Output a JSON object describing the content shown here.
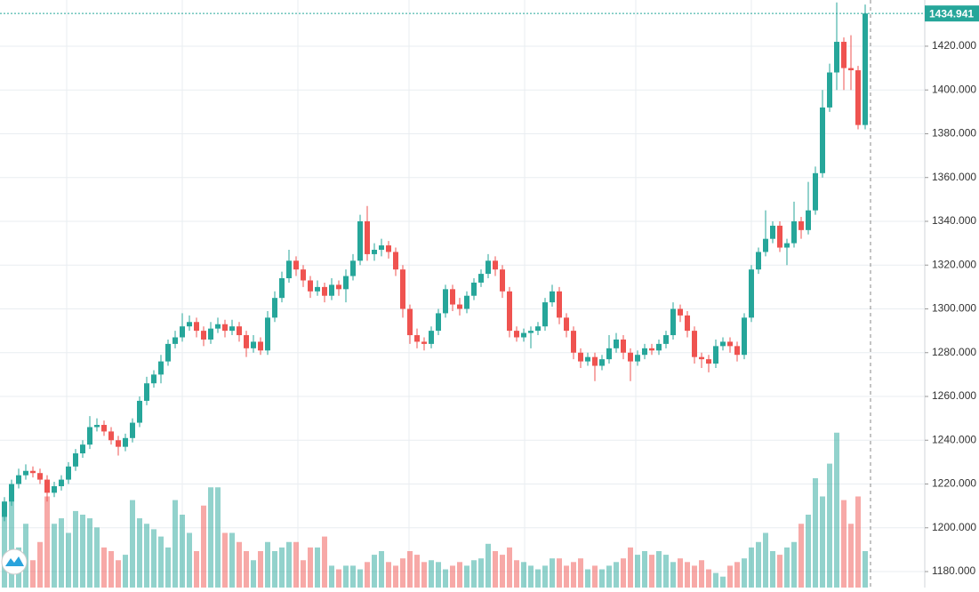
{
  "chart_data": {
    "type": "candlestick",
    "ylim": [
      1172.7,
      1441.1
    ],
    "yticks": [
      {
        "value": 1180,
        "label": "1180.000"
      },
      {
        "value": 1200,
        "label": "1200.000"
      },
      {
        "value": 1220,
        "label": "1220.000"
      },
      {
        "value": 1240,
        "label": "1240.000"
      },
      {
        "value": 1260,
        "label": "1260.000"
      },
      {
        "value": 1280,
        "label": "1280.000"
      },
      {
        "value": 1300,
        "label": "1300.000"
      },
      {
        "value": 1320,
        "label": "1320.000"
      },
      {
        "value": 1340,
        "label": "1340.000"
      },
      {
        "value": 1360,
        "label": "1360.000"
      },
      {
        "value": 1380,
        "label": "1380.000"
      },
      {
        "value": 1400,
        "label": "1400.000"
      },
      {
        "value": 1420,
        "label": "1420.000"
      }
    ],
    "grid": true,
    "up_color": "#26a69a",
    "down_color": "#ef5350",
    "vlim": [
      0,
      100
    ],
    "candles": [
      [
        1205,
        1214,
        1203,
        1212
      ],
      [
        1212,
        1222,
        1210,
        1220
      ],
      [
        1220,
        1227,
        1218,
        1224
      ],
      [
        1224,
        1229,
        1222,
        1226
      ],
      [
        1226,
        1228,
        1223,
        1225
      ],
      [
        1225,
        1227,
        1220,
        1222
      ],
      [
        1222,
        1224,
        1212,
        1216
      ],
      [
        1216,
        1221,
        1214,
        1219
      ],
      [
        1219,
        1224,
        1217,
        1222
      ],
      [
        1222,
        1230,
        1220,
        1228
      ],
      [
        1228,
        1236,
        1226,
        1234
      ],
      [
        1234,
        1240,
        1232,
        1238
      ],
      [
        1238,
        1251,
        1236,
        1246
      ],
      [
        1246,
        1250,
        1244,
        1247
      ],
      [
        1247,
        1249,
        1242,
        1244
      ],
      [
        1244,
        1246,
        1238,
        1240
      ],
      [
        1240,
        1242,
        1233,
        1237
      ],
      [
        1237,
        1243,
        1235,
        1241
      ],
      [
        1241,
        1250,
        1239,
        1248
      ],
      [
        1248,
        1260,
        1246,
        1258
      ],
      [
        1258,
        1269,
        1256,
        1266
      ],
      [
        1266,
        1272,
        1264,
        1270
      ],
      [
        1270,
        1279,
        1266,
        1276
      ],
      [
        1276,
        1286,
        1274,
        1284
      ],
      [
        1284,
        1290,
        1282,
        1287
      ],
      [
        1287,
        1298,
        1285,
        1292
      ],
      [
        1292,
        1297,
        1290,
        1294
      ],
      [
        1294,
        1296,
        1287,
        1290
      ],
      [
        1290,
        1292,
        1283,
        1286
      ],
      [
        1286,
        1294,
        1284,
        1291
      ],
      [
        1291,
        1296,
        1289,
        1293
      ],
      [
        1293,
        1295,
        1287,
        1290
      ],
      [
        1290,
        1295,
        1288,
        1292
      ],
      [
        1292,
        1294,
        1285,
        1288
      ],
      [
        1288,
        1290,
        1278,
        1282
      ],
      [
        1282,
        1288,
        1280,
        1285
      ],
      [
        1285,
        1287,
        1279,
        1281
      ],
      [
        1281,
        1299,
        1279,
        1296
      ],
      [
        1296,
        1308,
        1294,
        1305
      ],
      [
        1305,
        1317,
        1303,
        1314
      ],
      [
        1314,
        1327,
        1312,
        1322
      ],
      [
        1322,
        1324,
        1315,
        1318
      ],
      [
        1318,
        1320,
        1310,
        1313
      ],
      [
        1313,
        1315,
        1305,
        1308
      ],
      [
        1308,
        1313,
        1306,
        1310
      ],
      [
        1310,
        1312,
        1303,
        1306
      ],
      [
        1306,
        1314,
        1304,
        1311
      ],
      [
        1311,
        1313,
        1306,
        1309
      ],
      [
        1309,
        1318,
        1303,
        1315
      ],
      [
        1315,
        1325,
        1313,
        1322
      ],
      [
        1322,
        1343,
        1320,
        1340
      ],
      [
        1340,
        1347,
        1322,
        1325
      ],
      [
        1325,
        1330,
        1322,
        1327
      ],
      [
        1327,
        1332,
        1324,
        1329
      ],
      [
        1329,
        1331,
        1323,
        1326
      ],
      [
        1326,
        1328,
        1315,
        1318
      ],
      [
        1318,
        1320,
        1296,
        1300
      ],
      [
        1300,
        1302,
        1284,
        1288
      ],
      [
        1288,
        1291,
        1282,
        1285
      ],
      [
        1285,
        1287,
        1281,
        1284
      ],
      [
        1284,
        1292,
        1282,
        1290
      ],
      [
        1290,
        1300,
        1288,
        1298
      ],
      [
        1298,
        1311,
        1296,
        1309
      ],
      [
        1309,
        1311,
        1299,
        1302
      ],
      [
        1302,
        1305,
        1297,
        1300
      ],
      [
        1300,
        1308,
        1298,
        1306
      ],
      [
        1306,
        1314,
        1304,
        1312
      ],
      [
        1312,
        1318,
        1310,
        1316
      ],
      [
        1316,
        1325,
        1314,
        1322
      ],
      [
        1322,
        1324,
        1315,
        1318
      ],
      [
        1318,
        1320,
        1305,
        1308
      ],
      [
        1308,
        1310,
        1287,
        1290
      ],
      [
        1290,
        1292,
        1285,
        1287
      ],
      [
        1287,
        1291,
        1285,
        1289
      ],
      [
        1289,
        1292,
        1282,
        1290
      ],
      [
        1290,
        1294,
        1288,
        1292
      ],
      [
        1292,
        1305,
        1290,
        1303
      ],
      [
        1303,
        1311,
        1301,
        1308
      ],
      [
        1308,
        1310,
        1293,
        1296
      ],
      [
        1296,
        1298,
        1287,
        1290
      ],
      [
        1290,
        1292,
        1277,
        1280
      ],
      [
        1280,
        1282,
        1273,
        1276
      ],
      [
        1276,
        1280,
        1274,
        1278
      ],
      [
        1278,
        1280,
        1267,
        1274
      ],
      [
        1274,
        1279,
        1272,
        1277
      ],
      [
        1277,
        1288,
        1275,
        1282
      ],
      [
        1282,
        1289,
        1280,
        1286
      ],
      [
        1286,
        1288,
        1277,
        1280
      ],
      [
        1280,
        1282,
        1267,
        1276
      ],
      [
        1276,
        1281,
        1274,
        1279
      ],
      [
        1279,
        1284,
        1277,
        1282
      ],
      [
        1282,
        1284,
        1279,
        1281
      ],
      [
        1281,
        1286,
        1279,
        1284
      ],
      [
        1284,
        1290,
        1282,
        1288
      ],
      [
        1288,
        1303,
        1286,
        1300
      ],
      [
        1300,
        1302,
        1294,
        1297
      ],
      [
        1297,
        1299,
        1287,
        1290
      ],
      [
        1290,
        1292,
        1275,
        1278
      ],
      [
        1278,
        1280,
        1273,
        1277
      ],
      [
        1277,
        1279,
        1271,
        1275
      ],
      [
        1275,
        1286,
        1273,
        1283
      ],
      [
        1283,
        1287,
        1281,
        1285
      ],
      [
        1285,
        1287,
        1280,
        1283
      ],
      [
        1283,
        1285,
        1276,
        1279
      ],
      [
        1279,
        1298,
        1277,
        1296
      ],
      [
        1296,
        1320,
        1294,
        1318
      ],
      [
        1318,
        1328,
        1316,
        1326
      ],
      [
        1326,
        1345,
        1324,
        1332
      ],
      [
        1332,
        1340,
        1330,
        1338
      ],
      [
        1338,
        1340,
        1326,
        1328
      ],
      [
        1328,
        1332,
        1320,
        1330
      ],
      [
        1330,
        1349,
        1328,
        1340
      ],
      [
        1340,
        1342,
        1332,
        1336
      ],
      [
        1336,
        1358,
        1334,
        1345
      ],
      [
        1345,
        1365,
        1343,
        1362
      ],
      [
        1362,
        1400,
        1360,
        1392
      ],
      [
        1392,
        1412,
        1390,
        1408
      ],
      [
        1408,
        1440,
        1400,
        1422
      ],
      [
        1422,
        1424,
        1400,
        1410
      ],
      [
        1410,
        1425,
        1400,
        1409
      ],
      [
        1409,
        1411,
        1382,
        1384
      ],
      [
        1384,
        1439,
        1382,
        1434.941
      ]
    ],
    "volumes": [
      40,
      48,
      22,
      35,
      15,
      25,
      50,
      35,
      38,
      30,
      42,
      40,
      38,
      33,
      22,
      20,
      15,
      18,
      48,
      38,
      35,
      32,
      28,
      22,
      48,
      40,
      30,
      20,
      45,
      55,
      55,
      30,
      30,
      25,
      20,
      15,
      20,
      25,
      20,
      22,
      25,
      25,
      15,
      22,
      22,
      28,
      12,
      10,
      12,
      12,
      10,
      14,
      18,
      20,
      14,
      12,
      16,
      20,
      18,
      14,
      15,
      14,
      10,
      12,
      14,
      12,
      15,
      16,
      24,
      20,
      18,
      22,
      15,
      14,
      12,
      10,
      12,
      16,
      16,
      12,
      14,
      16,
      10,
      12,
      10,
      12,
      14,
      16,
      22,
      18,
      20,
      18,
      20,
      18,
      14,
      16,
      14,
      12,
      15,
      10,
      8,
      6,
      12,
      14,
      16,
      22,
      25,
      30,
      20,
      18,
      22,
      25,
      35,
      40,
      60,
      50,
      68,
      85,
      48,
      35,
      50,
      20
    ]
  }
}
